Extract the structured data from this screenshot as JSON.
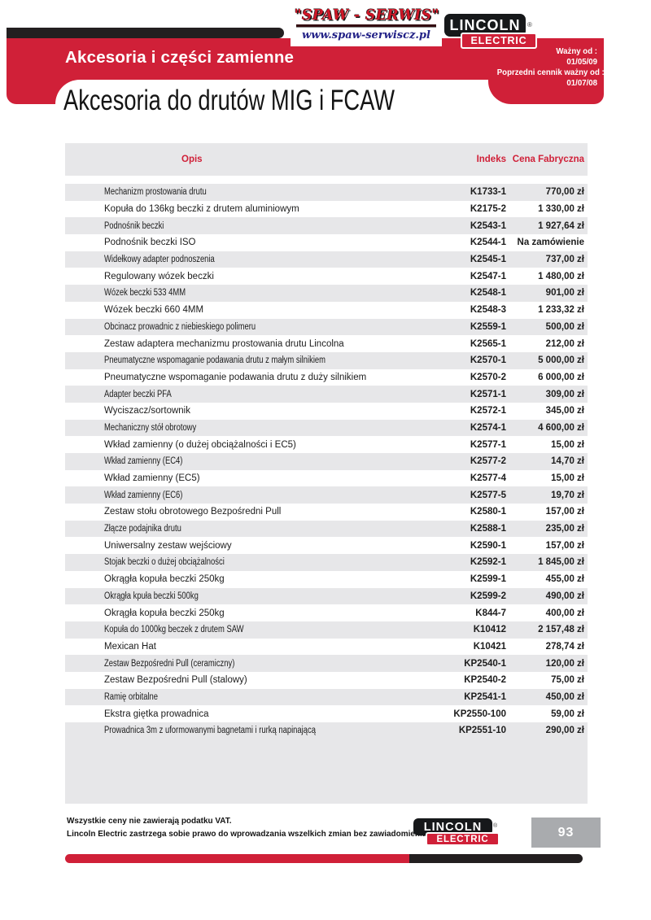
{
  "logo_spaw": {
    "name": "\"SPAW - SERWIS\"",
    "url": "www.spaw-serwiscz.pl"
  },
  "logo_lincoln": {
    "line1": "LINCOLN",
    "line2": "ELECTRIC",
    "registered": "®"
  },
  "validity": {
    "label1": "Ważny od :",
    "date1": "01/05/09",
    "label2": "Poprzedni cennik ważny od :",
    "date2": "01/07/08"
  },
  "banner": {
    "title": "Akcesoria i części zamienne"
  },
  "page_title": "Akcesoria do drutów MIG i FCAW",
  "table": {
    "columns": {
      "desc": "Opis",
      "index": "Indeks",
      "price": "Cena Fabryczna"
    },
    "rows": [
      {
        "desc": "Mechanizm prostowania drutu",
        "index": "K1733-1",
        "price": "770,00 zł"
      },
      {
        "desc": "Kopuła do 136kg beczki z drutem aluminiowym",
        "index": "K2175-2",
        "price": "1 330,00 zł"
      },
      {
        "desc": "Podnośnik beczki",
        "index": "K2543-1",
        "price": "1 927,64 zł"
      },
      {
        "desc": "Podnośnik beczki ISO",
        "index": "K2544-1",
        "price": "Na zamówienie"
      },
      {
        "desc": "Widełkowy adapter podnoszenia",
        "index": "K2545-1",
        "price": "737,00 zł"
      },
      {
        "desc": "Regulowany wózek beczki",
        "index": "K2547-1",
        "price": "1 480,00 zł"
      },
      {
        "desc": "Wózek beczki 533 4MM",
        "index": "K2548-1",
        "price": "901,00 zł"
      },
      {
        "desc": "Wózek beczki 660 4MM",
        "index": "K2548-3",
        "price": "1 233,32 zł"
      },
      {
        "desc": "Obcinacz prowadnic z niebieskiego polimeru",
        "index": "K2559-1",
        "price": "500,00 zł"
      },
      {
        "desc": "Zestaw adaptera mechanizmu prostowania drutu Lincolna",
        "index": "K2565-1",
        "price": "212,00 zł"
      },
      {
        "desc": "Pneumatyczne wspomaganie podawania drutu z małym silnikiem",
        "index": "K2570-1",
        "price": "5 000,00 zł"
      },
      {
        "desc": "Pneumatyczne wspomaganie podawania drutu z duży silnikiem",
        "index": "K2570-2",
        "price": "6 000,00 zł"
      },
      {
        "desc": "Adapter beczki PFA",
        "index": "K2571-1",
        "price": "309,00 zł"
      },
      {
        "desc": "Wyciszacz/sortownik",
        "index": "K2572-1",
        "price": "345,00 zł"
      },
      {
        "desc": "Mechaniczny stół obrotowy",
        "index": "K2574-1",
        "price": "4 600,00 zł"
      },
      {
        "desc": "Wkład zamienny (o dużej obciążalności i EC5)",
        "index": "K2577-1",
        "price": "15,00 zł"
      },
      {
        "desc": "Wkład zamienny (EC4)",
        "index": "K2577-2",
        "price": "14,70 zł"
      },
      {
        "desc": "Wkład zamienny (EC5)",
        "index": "K2577-4",
        "price": "15,00 zł"
      },
      {
        "desc": "Wkład zamienny (EC6)",
        "index": "K2577-5",
        "price": "19,70 zł"
      },
      {
        "desc": "Zestaw stołu obrotowego Bezpośredni Pull",
        "index": "K2580-1",
        "price": "157,00 zł"
      },
      {
        "desc": "Złącze podajnika drutu",
        "index": "K2588-1",
        "price": "235,00 zł"
      },
      {
        "desc": "Uniwersalny zestaw wejściowy",
        "index": "K2590-1",
        "price": "157,00 zł"
      },
      {
        "desc": "Stojak beczki o dużej obciążalności",
        "index": "K2592-1",
        "price": "1 845,00 zł"
      },
      {
        "desc": "Okrągła kopuła beczki 250kg",
        "index": "K2599-1",
        "price": "455,00 zł"
      },
      {
        "desc": "Okrągła kpuła beczki 500kg",
        "index": "K2599-2",
        "price": "490,00 zł"
      },
      {
        "desc": "Okrągła kopuła beczki 250kg",
        "index": "K844-7",
        "price": "400,00 zł"
      },
      {
        "desc": "Kopuła do 1000kg beczek z drutem SAW",
        "index": "K10412",
        "price": "2 157,48 zł"
      },
      {
        "desc": "Mexican Hat",
        "index": "K10421",
        "price": "278,74 zł"
      },
      {
        "desc": "Zestaw Bezpośredni Pull (ceramiczny)",
        "index": "KP2540-1",
        "price": "120,00 zł"
      },
      {
        "desc": "Zestaw Bezpośredni Pull (stalowy)",
        "index": "KP2540-2",
        "price": "75,00 zł"
      },
      {
        "desc": "Ramię orbitalne",
        "index": "KP2541-1",
        "price": "450,00 zł"
      },
      {
        "desc": "Ekstra giętka prowadnica",
        "index": "KP2550-100",
        "price": "59,00 zł"
      },
      {
        "desc": "Prowadnica 3m z uformowanymi bagnetami i rurką napinającą",
        "index": "KP2551-10",
        "price": "290,00 zł"
      }
    ]
  },
  "footer": {
    "note1": "Wszystkie ceny nie zawierają podatku VAT.",
    "note2": "Lincoln Electric zastrzega sobie prawo do wprowadzania wszelkich zmian bez zawiadomienia.",
    "page_number": "93"
  },
  "colors": {
    "red": "#d02038",
    "black": "#231f20",
    "row_gray": "#e7e7e9",
    "page_box_gray": "#a9abae"
  }
}
